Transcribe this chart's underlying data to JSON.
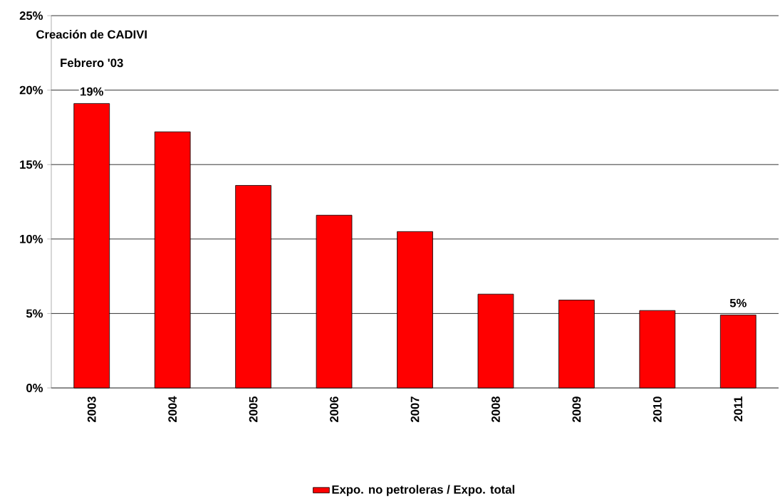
{
  "chart_data": {
    "type": "bar",
    "categories": [
      "2003",
      "2004",
      "2005",
      "2006",
      "2007",
      "2008",
      "2009",
      "2010",
      "2011"
    ],
    "series": [
      {
        "name": "Expo. no petroleras / Expo. total",
        "color": "#ff0000",
        "values": [
          19.1,
          17.2,
          13.6,
          11.6,
          10.5,
          6.3,
          5.9,
          5.2,
          4.9
        ],
        "value_labels": [
          "19%",
          null,
          null,
          null,
          null,
          null,
          null,
          null,
          "5%"
        ]
      }
    ],
    "ylim": [
      0,
      25
    ],
    "yticks": [
      {
        "value": 0,
        "label": "0%"
      },
      {
        "value": 5,
        "label": "5%"
      },
      {
        "value": 10,
        "label": "10%"
      },
      {
        "value": 15,
        "label": "15%"
      },
      {
        "value": 20,
        "label": "20%"
      },
      {
        "value": 25,
        "label": "25%"
      }
    ],
    "annotations": [
      "Creación de CADIVI",
      "Febrero '03"
    ],
    "grid": "y",
    "legend": "bottom"
  }
}
